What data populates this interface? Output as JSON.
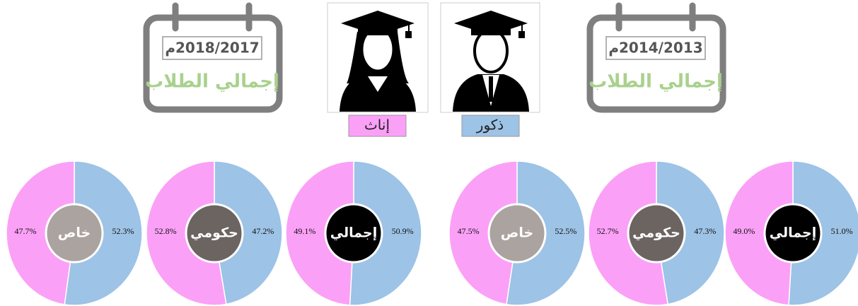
{
  "headers": [
    {
      "year": "2018/2017م",
      "label": "إجمالي الطلاب"
    },
    {
      "year": "2014/2013م",
      "label": "إجمالي الطلاب"
    }
  ],
  "chart_data": [
    {
      "type": "pie",
      "title": "خاص",
      "categories": [
        "ذكور",
        "إناث"
      ],
      "values": [
        52.3,
        47.7
      ],
      "value_labels": [
        "52.3%",
        "47.7%"
      ],
      "colors": [
        "#9dc3e6",
        "#fba0f7"
      ],
      "center_color": "#aaa39f"
    },
    {
      "type": "pie",
      "title": "حكومي",
      "categories": [
        "ذكور",
        "إناث"
      ],
      "values": [
        47.2,
        52.8
      ],
      "value_labels": [
        "47.2%",
        "52.8%"
      ],
      "colors": [
        "#9dc3e6",
        "#fba0f7"
      ],
      "center_color": "#6b6461"
    },
    {
      "type": "pie",
      "title": "إجمالي",
      "categories": [
        "ذكور",
        "إناث"
      ],
      "values": [
        50.9,
        49.1
      ],
      "value_labels": [
        "50.9%",
        "49.1%"
      ],
      "colors": [
        "#9dc3e6",
        "#fba0f7"
      ],
      "center_color": "#000000"
    },
    {
      "type": "pie",
      "title": "خاص",
      "categories": [
        "ذكور",
        "إناث"
      ],
      "values": [
        52.5,
        47.5
      ],
      "value_labels": [
        "52.5%",
        "47.5%"
      ],
      "colors": [
        "#9dc3e6",
        "#fba0f7"
      ],
      "center_color": "#aaa39f"
    },
    {
      "type": "pie",
      "title": "حكومي",
      "categories": [
        "ذكور",
        "إناث"
      ],
      "values": [
        47.3,
        52.7
      ],
      "value_labels": [
        "47.3%",
        "52.7%"
      ],
      "colors": [
        "#9dc3e6",
        "#fba0f7"
      ],
      "center_color": "#6b6461"
    },
    {
      "type": "pie",
      "title": "إجمالي",
      "categories": [
        "ذكور",
        "إناث"
      ],
      "values": [
        51.0,
        49.0
      ],
      "value_labels": [
        "51.0%",
        "49.0%"
      ],
      "colors": [
        "#9dc3e6",
        "#fba0f7"
      ],
      "center_color": "#000000"
    }
  ]
}
